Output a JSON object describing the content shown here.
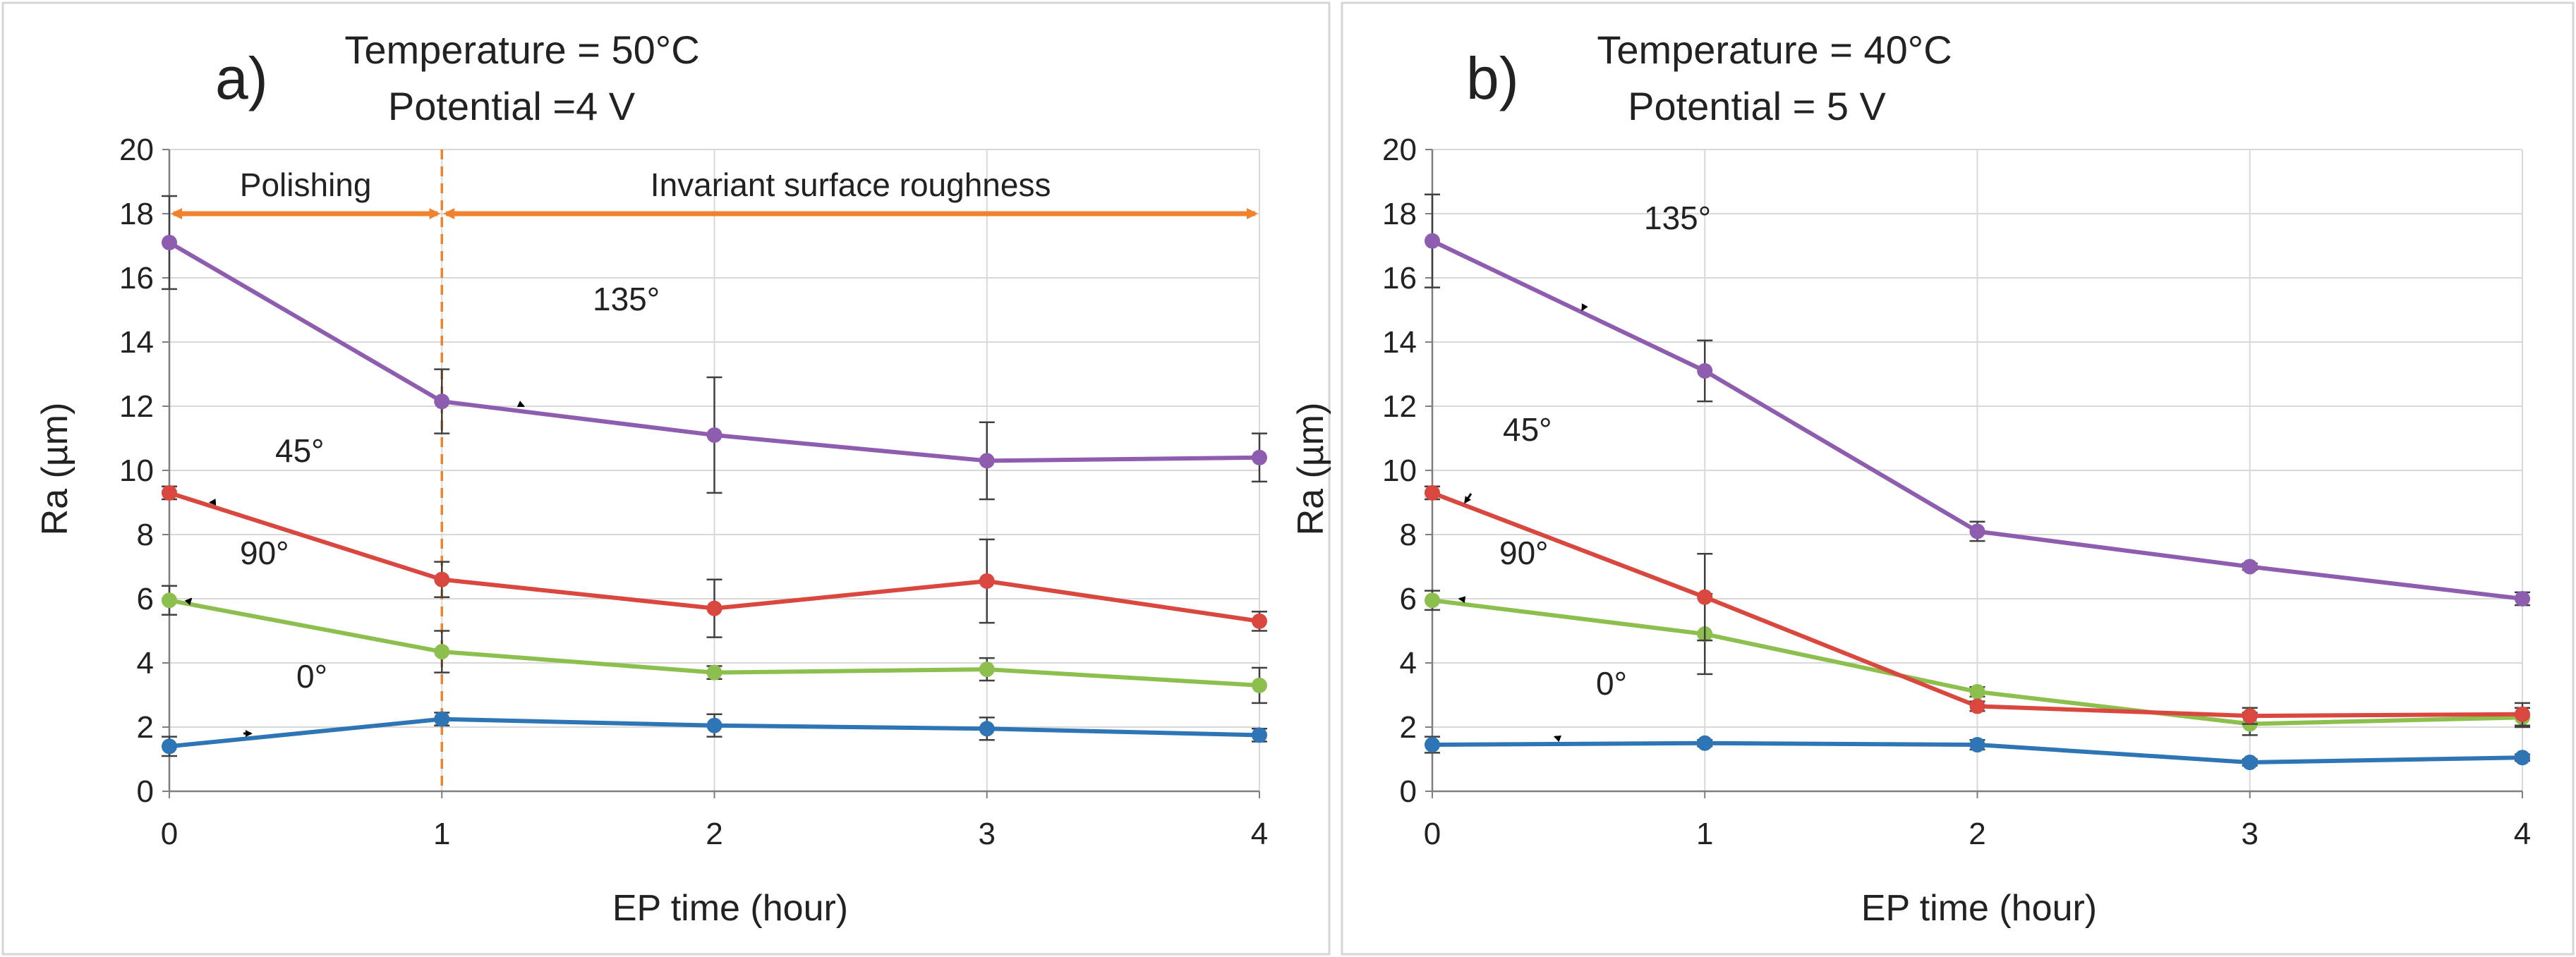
{
  "chart_data": [
    {
      "type": "line",
      "panel_label": "a)",
      "conditions": [
        "Temperature  =  50°C",
        "Potential =4 V"
      ],
      "xlabel": "EP time (hour)",
      "ylabel": "Ra (µm)",
      "x": [
        0,
        1,
        2,
        3,
        4
      ],
      "xlim": [
        0,
        4
      ],
      "ylim": [
        0,
        20
      ],
      "yticks": [
        0,
        2,
        4,
        6,
        8,
        10,
        12,
        14,
        16,
        18,
        20
      ],
      "grid": true,
      "series": [
        {
          "name": "0°",
          "color": "#2E75B6",
          "values": [
            1.4,
            2.25,
            2.05,
            1.95,
            1.75
          ],
          "errors": [
            0.3,
            0.2,
            0.35,
            0.35,
            0.2
          ]
        },
        {
          "name": "90°",
          "color": "#8CBF4E",
          "values": [
            5.95,
            4.35,
            3.7,
            3.8,
            3.3
          ],
          "errors": [
            0.45,
            0.65,
            0.2,
            0.35,
            0.55
          ]
        },
        {
          "name": "45°",
          "color": "#D9473F",
          "values": [
            9.3,
            6.6,
            5.7,
            6.55,
            5.3
          ],
          "errors": [
            0.2,
            0.55,
            0.9,
            1.3,
            0.3
          ]
        },
        {
          "name": "135°",
          "color": "#8E5DB0",
          "values": [
            17.1,
            12.15,
            11.1,
            10.3,
            10.4
          ],
          "errors": [
            1.45,
            1.0,
            1.8,
            1.2,
            0.75
          ]
        }
      ],
      "annotations": [
        {
          "text": "135°",
          "series": "135°",
          "at_x": 1.3,
          "at_y": 12.0
        },
        {
          "text": "45°",
          "series": "45°",
          "at_x": 0.15,
          "at_y": 9.0
        },
        {
          "text": "90°",
          "series": "90°",
          "at_x": 0.08,
          "at_y": 6.0
        },
        {
          "text": "0°",
          "series": "0°",
          "at_x": 0.3,
          "at_y": 1.8
        }
      ],
      "regions": [
        {
          "text": "Polishing",
          "from": 0,
          "to": 1,
          "y": 18
        },
        {
          "text": "Invariant surface roughness",
          "from": 1,
          "to": 4,
          "y": 18
        }
      ],
      "vline_x": 1,
      "region_color": "#F0822D"
    },
    {
      "type": "line",
      "panel_label": "b)",
      "conditions": [
        "Temperature  = 40°C",
        "Potential = 5 V"
      ],
      "xlabel": "EP time (hour)",
      "ylabel": "Ra (µm)",
      "x": [
        0,
        1,
        2,
        3,
        4
      ],
      "xlim": [
        0,
        4
      ],
      "ylim": [
        0,
        20
      ],
      "yticks": [
        0,
        2,
        4,
        6,
        8,
        10,
        12,
        14,
        16,
        18,
        20
      ],
      "grid": true,
      "series": [
        {
          "name": "0°",
          "color": "#2E75B6",
          "values": [
            1.45,
            1.5,
            1.45,
            0.9,
            1.05
          ],
          "errors": [
            0.25,
            0.1,
            0.15,
            0.1,
            0.1
          ]
        },
        {
          "name": "90°",
          "color": "#8CBF4E",
          "values": [
            5.95,
            4.9,
            3.1,
            2.1,
            2.3
          ],
          "errors": [
            0.3,
            1.25,
            0.15,
            0.35,
            0.3
          ]
        },
        {
          "name": "45°",
          "color": "#D9473F",
          "values": [
            9.3,
            6.05,
            2.65,
            2.35,
            2.4
          ],
          "errors": [
            0.2,
            1.35,
            0.15,
            0.25,
            0.35
          ]
        },
        {
          "name": "135°",
          "color": "#8E5DB0",
          "values": [
            17.15,
            13.1,
            8.1,
            7.0,
            6.0
          ],
          "errors": [
            1.45,
            0.95,
            0.3,
            0.1,
            0.2
          ]
        }
      ],
      "annotations": [
        {
          "text": "135°",
          "series": "135°",
          "at_x": 0.55,
          "at_y": 15.0
        },
        {
          "text": "45°",
          "series": "45°",
          "at_x": 0.12,
          "at_y": 9.0
        },
        {
          "text": "90°",
          "series": "90°",
          "at_x": 0.1,
          "at_y": 6.0
        },
        {
          "text": "0°",
          "series": "0°",
          "at_x": 0.45,
          "at_y": 1.7
        }
      ]
    }
  ]
}
